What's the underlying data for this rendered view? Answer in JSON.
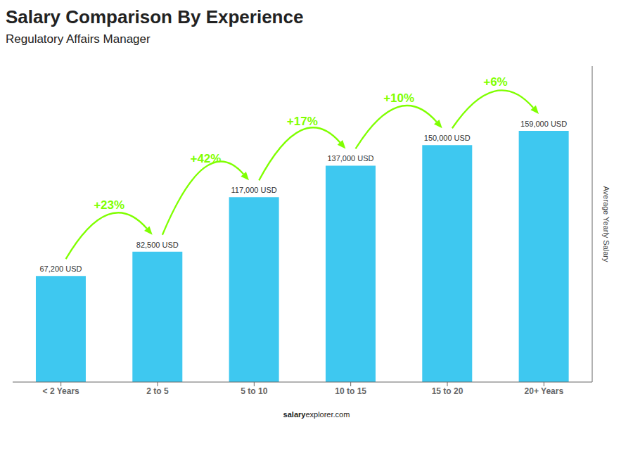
{
  "chart_data": {
    "type": "bar",
    "title": "Salary Comparison By Experience",
    "subtitle": "Regulatory Affairs Manager",
    "categories": [
      "< 2 Years",
      "2 to 5",
      "5 to 10",
      "10 to 15",
      "15 to 20",
      "20+ Years"
    ],
    "values": [
      67200,
      82500,
      117000,
      137000,
      150000,
      159000
    ],
    "value_labels": [
      "67,200 USD",
      "82,500 USD",
      "117,000 USD",
      "137,000 USD",
      "150,000 USD",
      "159,000 USD"
    ],
    "data_labels": true,
    "color": "#3EC8F0",
    "ylim": [
      0,
      200000
    ],
    "yticks": [],
    "tick_labels": "x",
    "grid": false,
    "ylabel": "Average Yearly Salary",
    "annotations": [
      {
        "text": "+23%",
        "color": "#7FFF00"
      },
      {
        "text": "+42%",
        "color": "#7FFF00"
      },
      {
        "text": "+17%",
        "color": "#7FFF00"
      },
      {
        "text": "+10%",
        "color": "#7FFF00"
      },
      {
        "text": "+6%",
        "color": "#7FFF00"
      }
    ],
    "watermark": [
      "salary",
      "explorer.com"
    ]
  }
}
